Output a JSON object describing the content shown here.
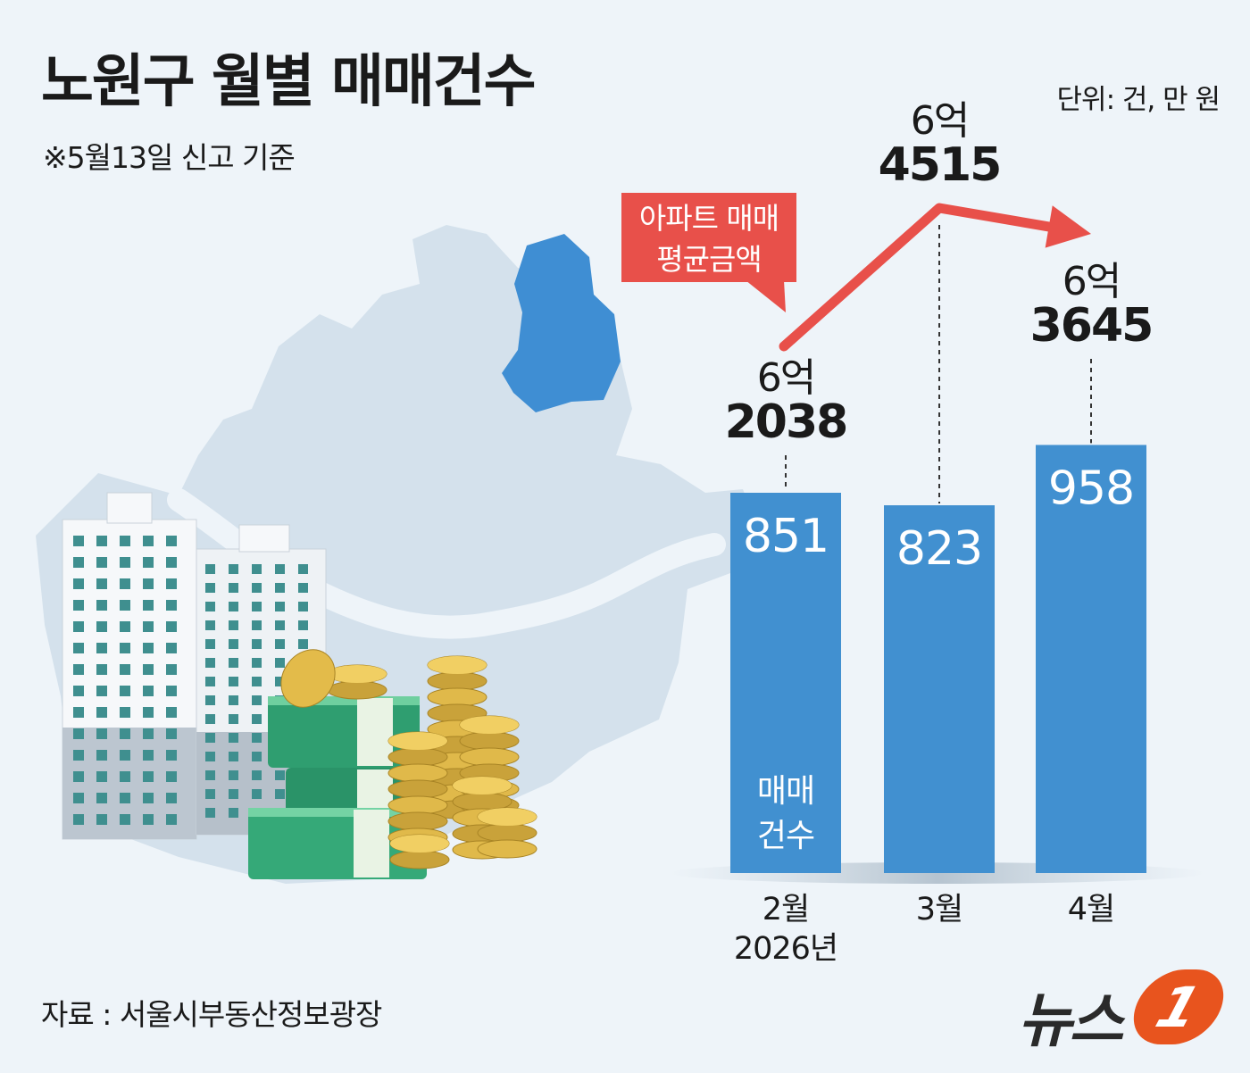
{
  "title": "노원구 월별 매매건수",
  "note": "※5월13일 신고 기준",
  "unit": "단위: 건, 만 원",
  "source": "자료 : 서울시부동산정보광장",
  "logo": {
    "text": "뉴스",
    "mark": "1"
  },
  "callout": {
    "line1": "아파트 매매",
    "line2": "평균금액"
  },
  "bar_legend": {
    "line1": "매매",
    "line2": "건수"
  },
  "colors": {
    "bar": "#4190d0",
    "line": "#e8504a",
    "map": "#d4e1ec",
    "district": "#3f8ed3"
  },
  "chart_data": {
    "type": "bar",
    "categories": [
      "2월",
      "3월",
      "4월"
    ],
    "category_sublabels": [
      "2026년",
      "",
      ""
    ],
    "series": [
      {
        "name": "매매 건수",
        "type": "bar",
        "values": [
          851,
          823,
          958
        ]
      },
      {
        "name": "아파트 매매 평균금액",
        "type": "line",
        "values": [
          62038,
          64515,
          63645
        ],
        "labels": [
          [
            "6억",
            "2038"
          ],
          [
            "6억",
            "4515"
          ],
          [
            "6억",
            "3645"
          ]
        ]
      }
    ],
    "grid": false
  }
}
